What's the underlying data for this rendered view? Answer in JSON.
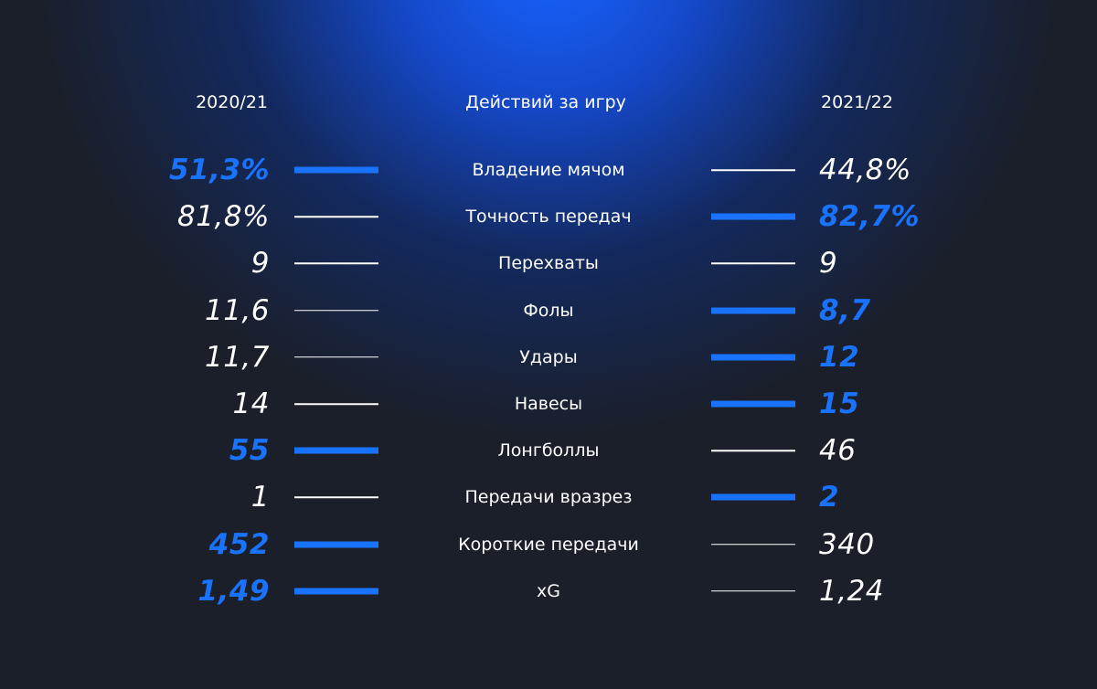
{
  "header": {
    "left": "2020/21",
    "center": "Действий за игру",
    "right": "2021/22"
  },
  "table": {
    "rows": [
      {
        "label": "Владение мячом",
        "left": "51,3%",
        "right": "44,8%",
        "highlight": "left"
      },
      {
        "label": "Точность передач",
        "left": "81,8%",
        "right": "82,7%",
        "highlight": "right"
      },
      {
        "label": "Перехваты",
        "left": "9",
        "right": "9",
        "highlight": "none"
      },
      {
        "label": "Фолы",
        "left": "11,6",
        "right": "8,7",
        "highlight": "right"
      },
      {
        "label": "Удары",
        "left": "11,7",
        "right": "12",
        "highlight": "right"
      },
      {
        "label": "Навесы",
        "left": "14",
        "right": "15",
        "highlight": "right"
      },
      {
        "label": "Лонгболлы",
        "left": "55",
        "right": "46",
        "highlight": "left"
      },
      {
        "label": "Передачи вразрез",
        "left": "1",
        "right": "2",
        "highlight": "right"
      },
      {
        "label": "Короткие передачи",
        "left": "452",
        "right": "340",
        "highlight": "left"
      },
      {
        "label": "xG",
        "left": "1,49",
        "right": "1,24",
        "highlight": "left"
      }
    ]
  }
}
